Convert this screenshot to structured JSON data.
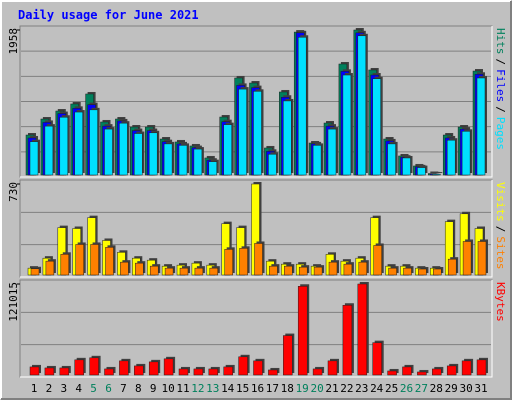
{
  "chart_data": {
    "type": "bar",
    "title": "Daily usage for June 2021",
    "categories": [
      "1",
      "2",
      "3",
      "4",
      "5",
      "6",
      "7",
      "8",
      "9",
      "10",
      "11",
      "12",
      "13",
      "14",
      "15",
      "16",
      "17",
      "18",
      "19",
      "20",
      "21",
      "22",
      "23",
      "24",
      "25",
      "26",
      "27",
      "28",
      "29",
      "30",
      "31"
    ],
    "category_colors": [
      "#000000",
      "#000000",
      "#000000",
      "#000000",
      "#00805c",
      "#00805c",
      "#000000",
      "#000000",
      "#000000",
      "#000000",
      "#000000",
      "#00805c",
      "#00805c",
      "#000000",
      "#000000",
      "#000000",
      "#000000",
      "#000000",
      "#00805c",
      "#00805c",
      "#000000",
      "#000000",
      "#000000",
      "#000000",
      "#000000",
      "#00805c",
      "#00805c",
      "#000000",
      "#000000",
      "#000000",
      "#000000"
    ],
    "legend_separator": "/",
    "panels": [
      {
        "ylim": [
          0,
          1958
        ],
        "yticks": [
          1958
        ],
        "series": [
          {
            "name": "Hits",
            "color": "#00805c",
            "values": [
              540,
              756,
              864,
              959,
              1094,
              716,
              756,
              648,
              648,
              486,
              446,
              392,
              230,
              783,
              1310,
              1242,
              365,
              1121,
              1930,
              432,
              702,
              1499,
              1958,
              1418,
              486,
              257,
              122,
              20,
              540,
              648,
              1404
            ]
          },
          {
            "name": "Files",
            "color": "#0000ff",
            "values": [
              500,
              710,
              830,
              900,
              950,
              660,
              730,
              600,
              600,
              450,
              420,
              370,
              200,
              720,
              1210,
              1180,
              320,
              1050,
              1920,
              420,
              660,
              1400,
              1920,
              1350,
              460,
              240,
              110,
              15,
              500,
              620,
              1360
            ]
          },
          {
            "name": "Pages",
            "color": "#00e0ff",
            "values": [
              450,
              660,
              780,
              850,
              880,
              620,
              700,
              560,
              570,
              420,
              400,
              350,
              180,
              680,
              1160,
              1130,
              280,
              1000,
              1860,
              400,
              620,
              1350,
              1880,
              1300,
              420,
              230,
              100,
              12,
              470,
              590,
              1310
            ]
          }
        ]
      },
      {
        "ylim": [
          0,
          730
        ],
        "yticks": [
          730
        ],
        "series": [
          {
            "name": "Visits",
            "color": "#ffff00",
            "values": [
              55,
              135,
              380,
              373,
              460,
              277,
              182,
              135,
              119,
              71,
              79,
              95,
              79,
              412,
              380,
              730,
              111,
              87,
              87,
              71,
              166,
              111,
              135,
              460,
              71,
              71,
              55,
              55,
              428,
              491,
              373
            ]
          },
          {
            "name": "Sites",
            "color": "#ff8000",
            "values": [
              50,
              111,
              166,
              245,
              245,
              222,
              103,
              95,
              71,
              55,
              55,
              55,
              55,
              206,
              214,
              253,
              71,
              71,
              63,
              63,
              103,
              87,
              103,
              237,
              55,
              55,
              48,
              48,
              127,
              269,
              269
            ]
          }
        ]
      },
      {
        "ylim": [
          0,
          121015
        ],
        "yticks": [
          121015
        ],
        "series": [
          {
            "name": "KBytes",
            "color": "#ff0000",
            "values": [
              10757,
              9400,
              9400,
              20169,
              22858,
              8068,
              18824,
              12102,
              17480,
              21514,
              8068,
              8068,
              8068,
              10757,
              24203,
              18824,
              6723,
              52440,
              118000,
              8068,
              18824,
              92778,
              121015,
              43027,
              5378,
              10757,
              4034,
              8068,
              12102,
              18824,
              20169
            ]
          }
        ]
      }
    ]
  }
}
